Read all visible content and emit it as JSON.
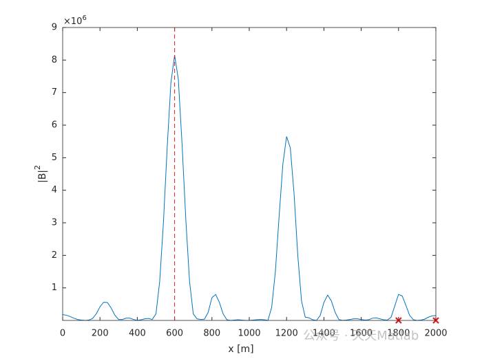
{
  "chart_data": {
    "type": "line",
    "xlabel": "x [m]",
    "ylabel": "|B|",
    "ylabel_superscript": "2",
    "y_exponent": {
      "base": "×10",
      "power": "6"
    },
    "xlim": [
      0,
      2000
    ],
    "xticks": [
      0,
      200,
      400,
      600,
      800,
      1000,
      1200,
      1400,
      1600,
      1800,
      2000
    ],
    "ylim": [
      0,
      9
    ],
    "yticks": [
      1,
      2,
      3,
      4,
      5,
      6,
      7,
      8,
      9
    ],
    "x": [
      0,
      20,
      40,
      60,
      80,
      100,
      120,
      140,
      160,
      180,
      200,
      220,
      240,
      260,
      280,
      300,
      320,
      340,
      360,
      380,
      400,
      420,
      440,
      460,
      480,
      500,
      520,
      540,
      560,
      580,
      600,
      620,
      640,
      660,
      680,
      700,
      720,
      740,
      760,
      780,
      800,
      820,
      840,
      860,
      880,
      900,
      920,
      940,
      960,
      980,
      1000,
      1020,
      1040,
      1060,
      1080,
      1100,
      1120,
      1140,
      1160,
      1180,
      1200,
      1220,
      1240,
      1260,
      1280,
      1300,
      1320,
      1340,
      1360,
      1380,
      1400,
      1420,
      1440,
      1460,
      1480,
      1500,
      1520,
      1540,
      1560,
      1580,
      1600,
      1620,
      1640,
      1660,
      1680,
      1700,
      1720,
      1740,
      1760,
      1780,
      1800,
      1820,
      1840,
      1860,
      1880,
      1900,
      1920,
      1940,
      1960,
      1980,
      2000
    ],
    "series": [
      {
        "color": "#0072bd",
        "values": [
          0.18,
          0.16,
          0.12,
          0.07,
          0.03,
          0.01,
          0.0,
          0.01,
          0.06,
          0.2,
          0.42,
          0.56,
          0.55,
          0.38,
          0.16,
          0.03,
          0.03,
          0.07,
          0.07,
          0.03,
          0.0,
          0.02,
          0.05,
          0.06,
          0.03,
          0.2,
          1.2,
          3.0,
          5.3,
          7.3,
          8.15,
          7.4,
          5.4,
          3.1,
          1.2,
          0.2,
          0.05,
          0.03,
          0.04,
          0.25,
          0.7,
          0.8,
          0.55,
          0.2,
          0.02,
          0.0,
          0.01,
          0.02,
          0.01,
          0.0,
          0.0,
          0.01,
          0.02,
          0.03,
          0.02,
          0.0,
          0.4,
          1.5,
          3.2,
          4.8,
          5.65,
          5.3,
          3.9,
          2.0,
          0.6,
          0.1,
          0.08,
          0.02,
          0.0,
          0.15,
          0.55,
          0.78,
          0.6,
          0.25,
          0.03,
          0.0,
          0.01,
          0.03,
          0.05,
          0.05,
          0.03,
          0.01,
          0.02,
          0.07,
          0.08,
          0.05,
          0.02,
          0.01,
          0.1,
          0.45,
          0.8,
          0.75,
          0.45,
          0.15,
          0.02,
          0.0,
          0.01,
          0.04,
          0.1,
          0.14,
          0.15
        ]
      }
    ],
    "markers": {
      "color": "#e31a1c",
      "x": [
        1800,
        2000
      ],
      "values": [
        0,
        0
      ]
    },
    "reference_line": {
      "x": 600,
      "color": "#e31a1c"
    },
    "watermark": "公众号 · 天天Matlab"
  }
}
